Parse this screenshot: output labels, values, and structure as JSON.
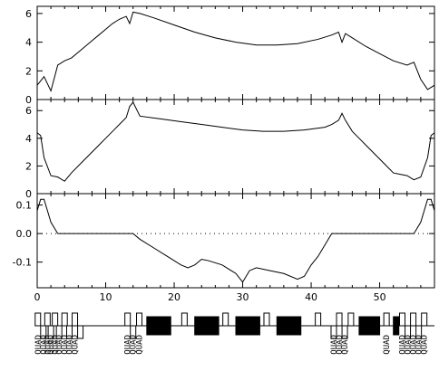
{
  "chart_data": [
    {
      "type": "line",
      "panel": "top",
      "title": "",
      "xlabel": "",
      "ylabel": "",
      "xlim": [
        0,
        58
      ],
      "ylim": [
        0,
        6.5
      ],
      "yticks": [
        0,
        2,
        4,
        6
      ],
      "series": [
        {
          "x": [
            0,
            1,
            2,
            3,
            4,
            5,
            6,
            7,
            8,
            9,
            10,
            11,
            12,
            13,
            13.5,
            14,
            15,
            17,
            20,
            23,
            26,
            29,
            32,
            35,
            38,
            41,
            43,
            44,
            44.5,
            45,
            46,
            48,
            50,
            52,
            54,
            55,
            56,
            57,
            58
          ],
          "y": [
            1.0,
            1.6,
            0.6,
            2.4,
            2.7,
            2.9,
            3.3,
            3.7,
            4.1,
            4.5,
            4.9,
            5.3,
            5.6,
            5.8,
            5.3,
            6.1,
            6.0,
            5.7,
            5.2,
            4.7,
            4.3,
            4.0,
            3.8,
            3.8,
            3.9,
            4.2,
            4.5,
            4.7,
            4.0,
            4.6,
            4.3,
            3.7,
            3.2,
            2.7,
            2.4,
            2.6,
            1.4,
            0.7,
            1.0
          ]
        }
      ]
    },
    {
      "type": "line",
      "panel": "middle",
      "title": "",
      "xlabel": "",
      "ylabel": "",
      "xlim": [
        0,
        58
      ],
      "ylim": [
        0,
        6.8
      ],
      "yticks": [
        0,
        2,
        4,
        6
      ],
      "series": [
        {
          "x": [
            0,
            0.5,
            1,
            2,
            3,
            4,
            5,
            6,
            7,
            8,
            9,
            10,
            11,
            12,
            13,
            13.5,
            14,
            15,
            18,
            21,
            24,
            27,
            30,
            33,
            36,
            39,
            42,
            43,
            44,
            44.5,
            45,
            46,
            47,
            48,
            49,
            50,
            51,
            52,
            53,
            54,
            55,
            56,
            57,
            57.5,
            58
          ],
          "y": [
            4.4,
            4.2,
            2.6,
            1.3,
            1.2,
            0.9,
            1.5,
            2.0,
            2.5,
            3.0,
            3.5,
            4.0,
            4.5,
            5.0,
            5.5,
            6.3,
            6.6,
            5.6,
            5.4,
            5.2,
            5.0,
            4.8,
            4.6,
            4.5,
            4.5,
            4.6,
            4.8,
            5.0,
            5.3,
            5.8,
            5.3,
            4.5,
            4.0,
            3.5,
            3.0,
            2.5,
            2.0,
            1.5,
            1.4,
            1.3,
            1.0,
            1.2,
            2.6,
            4.2,
            4.4
          ]
        }
      ]
    },
    {
      "type": "line",
      "panel": "bottom",
      "title": "",
      "xlabel": "",
      "ylabel": "",
      "xlim": [
        0,
        58
      ],
      "ylim": [
        -0.19,
        0.14
      ],
      "yticks": [
        -0.1,
        0.0,
        0.1
      ],
      "ytick_labels": [
        "-0.1",
        "0.0",
        "0.1"
      ],
      "xticks": [
        0,
        10,
        20,
        30,
        40,
        50
      ],
      "zero_line": "dotted",
      "series": [
        {
          "x": [
            0,
            0.5,
            1,
            1.5,
            2,
            3,
            14,
            15,
            17,
            19,
            21,
            22,
            23,
            24,
            25,
            27,
            29,
            30,
            31,
            32,
            34,
            36,
            38,
            39,
            40,
            41,
            42,
            43,
            55,
            56,
            56.5,
            57,
            57.5,
            58
          ],
          "y": [
            0.08,
            0.12,
            0.12,
            0.08,
            0.04,
            0.0,
            0.0,
            -0.02,
            -0.05,
            -0.08,
            -0.11,
            -0.12,
            -0.11,
            -0.09,
            -0.095,
            -0.11,
            -0.14,
            -0.17,
            -0.13,
            -0.12,
            -0.13,
            -0.14,
            -0.16,
            -0.15,
            -0.11,
            -0.08,
            -0.04,
            0.0,
            0.0,
            0.04,
            0.08,
            0.12,
            0.12,
            0.08
          ]
        }
      ]
    }
  ],
  "lattice": {
    "label": "QUAD",
    "elements": [
      {
        "s": 0.1,
        "kind": "quad",
        "label": true
      },
      {
        "s": 0.9,
        "kind": "quad",
        "label": true
      },
      {
        "s": 1.5,
        "kind": "quad",
        "label": true
      },
      {
        "s": 2.0,
        "kind": "quad",
        "label": true
      },
      {
        "s": 2.6,
        "kind": "quad",
        "label": true
      },
      {
        "s": 3.2,
        "kind": "quad",
        "label": true
      },
      {
        "s": 4.0,
        "kind": "quad",
        "label": true
      },
      {
        "s": 4.7,
        "kind": "quad",
        "label": true
      },
      {
        "s": 5.5,
        "kind": "quad",
        "label": true
      },
      {
        "s": 6.3,
        "kind": "quad",
        "label": false
      },
      {
        "s": 13.2,
        "kind": "quad",
        "label": true
      },
      {
        "s": 14.0,
        "kind": "quad",
        "label": true
      },
      {
        "s": 14.9,
        "kind": "quad",
        "label": true
      },
      {
        "s": 16.0,
        "kind": "dipole",
        "length": 3.5,
        "label": false
      },
      {
        "s": 21.5,
        "kind": "quad",
        "label": false
      },
      {
        "s": 23.0,
        "kind": "dipole",
        "length": 3.5,
        "label": false
      },
      {
        "s": 27.5,
        "kind": "quad",
        "label": false
      },
      {
        "s": 29.0,
        "kind": "dipole",
        "length": 3.5,
        "label": false
      },
      {
        "s": 33.5,
        "kind": "quad",
        "label": false
      },
      {
        "s": 35.0,
        "kind": "dipole",
        "length": 3.5,
        "label": false
      },
      {
        "s": 41.0,
        "kind": "quad",
        "label": false
      },
      {
        "s": 43.3,
        "kind": "quad",
        "label": true
      },
      {
        "s": 44.1,
        "kind": "quad",
        "label": true
      },
      {
        "s": 44.9,
        "kind": "quad",
        "label": true
      },
      {
        "s": 45.8,
        "kind": "quad",
        "label": false
      },
      {
        "s": 47.0,
        "kind": "dipole",
        "length": 3.0,
        "label": false
      },
      {
        "s": 51.0,
        "kind": "quad",
        "label": true
      },
      {
        "s": 52.0,
        "kind": "dipole",
        "length": 0.8,
        "label": false
      },
      {
        "s": 53.3,
        "kind": "quad",
        "label": true
      },
      {
        "s": 54.1,
        "kind": "quad",
        "label": true
      },
      {
        "s": 54.9,
        "kind": "quad",
        "label": true
      },
      {
        "s": 55.7,
        "kind": "quad",
        "label": true
      },
      {
        "s": 56.5,
        "kind": "quad",
        "label": true
      }
    ]
  }
}
